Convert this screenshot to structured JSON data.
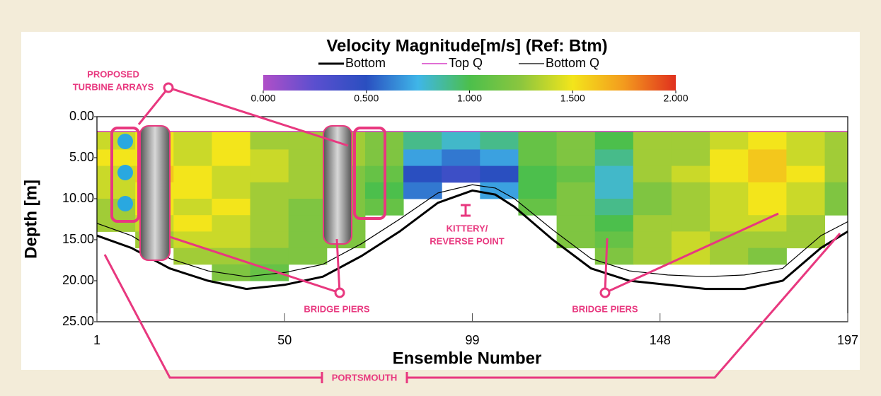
{
  "chart_data": {
    "type": "heatmap",
    "title": "Velocity Magnitude[m/s] (Ref: Btm)",
    "xlabel": "Ensemble Number",
    "ylabel": "Depth [m]",
    "xlim": [
      1,
      197
    ],
    "xticks": [
      1,
      50,
      99,
      148,
      197
    ],
    "ylim": [
      0,
      25
    ],
    "y_inverted": true,
    "yticks": [
      {
        "value": 0,
        "label": "0.00"
      },
      {
        "value": 5,
        "label": "5.00"
      },
      {
        "value": 10,
        "label": "10.00"
      },
      {
        "value": 15,
        "label": "15.00"
      },
      {
        "value": 20,
        "label": "20.00"
      },
      {
        "value": 25,
        "label": "25.00"
      }
    ],
    "clim": [
      0,
      2
    ],
    "cticks": [
      {
        "value": 0,
        "label": "0.000"
      },
      {
        "value": 0.5,
        "label": "0.500"
      },
      {
        "value": 1,
        "label": "1.000"
      },
      {
        "value": 1.5,
        "label": "1.500"
      },
      {
        "value": 2,
        "label": "2.000"
      }
    ],
    "colormap": [
      "#b04fc8",
      "#5a4fcf",
      "#2a4fc0",
      "#3fb6e8",
      "#4cbf4c",
      "#8cc63e",
      "#f3e51b",
      "#f39a1e",
      "#e0301e"
    ],
    "heatmap": {
      "x_bins": [
        1,
        11,
        21,
        31,
        41,
        51,
        61,
        71,
        81,
        91,
        101,
        111,
        121,
        131,
        141,
        151,
        161,
        171,
        181,
        191,
        197
      ],
      "depth_bins": [
        1.8,
        4,
        6,
        8,
        10,
        12,
        14,
        16,
        18,
        20
      ],
      "values": [
        [
          1.4,
          1.5,
          1.4,
          1.5,
          1.3,
          1.3,
          1.3,
          1.2,
          0.9,
          0.8,
          0.9,
          1.1,
          1.2,
          1.0,
          1.3,
          1.3,
          1.4,
          1.5,
          1.4,
          1.3
        ],
        [
          1.5,
          1.5,
          1.4,
          1.5,
          1.4,
          1.3,
          1.3,
          1.2,
          0.7,
          0.6,
          0.7,
          1.1,
          1.2,
          0.9,
          1.3,
          1.3,
          1.5,
          1.6,
          1.4,
          1.3
        ],
        [
          1.4,
          1.6,
          1.5,
          1.4,
          1.4,
          1.3,
          1.2,
          1.1,
          0.5,
          0.4,
          0.5,
          1.0,
          1.1,
          0.8,
          1.3,
          1.4,
          1.5,
          1.6,
          1.5,
          1.3
        ],
        [
          1.4,
          1.5,
          1.5,
          1.4,
          1.3,
          1.3,
          1.2,
          1.0,
          0.6,
          null,
          0.7,
          1.0,
          1.2,
          0.8,
          1.2,
          1.3,
          1.4,
          1.5,
          1.4,
          1.2
        ],
        [
          1.3,
          1.5,
          1.4,
          1.5,
          1.3,
          1.2,
          1.2,
          1.1,
          null,
          null,
          null,
          1.1,
          1.2,
          0.9,
          1.2,
          1.3,
          1.4,
          1.5,
          1.4,
          1.2
        ],
        [
          1.3,
          1.4,
          1.5,
          1.4,
          1.3,
          1.2,
          1.2,
          null,
          null,
          null,
          null,
          null,
          1.2,
          1.0,
          1.3,
          1.3,
          1.4,
          1.4,
          1.3,
          null
        ],
        [
          null,
          1.3,
          1.4,
          1.4,
          1.3,
          1.2,
          1.2,
          null,
          null,
          null,
          null,
          null,
          1.2,
          1.1,
          1.3,
          1.4,
          1.3,
          1.3,
          1.3,
          null
        ],
        [
          null,
          null,
          1.3,
          1.3,
          1.2,
          1.2,
          null,
          null,
          null,
          null,
          null,
          null,
          null,
          1.2,
          1.3,
          1.4,
          1.3,
          1.2,
          null,
          null
        ],
        [
          null,
          null,
          null,
          1.2,
          1.1,
          null,
          null,
          null,
          null,
          null,
          null,
          null,
          null,
          null,
          null,
          null,
          null,
          null,
          null,
          null
        ]
      ]
    },
    "series": [
      {
        "name": "Bottom",
        "color": "#000000",
        "width": 3,
        "x": [
          1,
          10,
          20,
          30,
          40,
          50,
          60,
          70,
          80,
          90,
          99,
          105,
          110,
          120,
          130,
          140,
          150,
          160,
          170,
          180,
          190,
          197
        ],
        "values": [
          14.5,
          16,
          18.5,
          20,
          21,
          20.5,
          19.5,
          17,
          14,
          10.5,
          9,
          9.5,
          11,
          15,
          18.5,
          20,
          20.5,
          21,
          21,
          20,
          16,
          14
        ]
      },
      {
        "name": "Top Q",
        "color": "#d63fc6",
        "width": 1.5,
        "x": [
          1,
          197
        ],
        "values": [
          1.8,
          1.8
        ]
      },
      {
        "name": "Bottom Q",
        "color": "#000000",
        "width": 1.2,
        "x": [
          1,
          10,
          20,
          30,
          40,
          50,
          60,
          70,
          80,
          90,
          99,
          105,
          110,
          120,
          130,
          140,
          150,
          160,
          170,
          180,
          190,
          197
        ],
        "values": [
          13,
          14.5,
          17.3,
          18.8,
          19.5,
          19,
          18,
          15.5,
          12.5,
          9.3,
          8.3,
          8.7,
          10,
          13.8,
          17.3,
          18.8,
          19.3,
          19.5,
          19.3,
          18.5,
          14.5,
          12.8
        ]
      }
    ],
    "annotations": {
      "turbines": [
        "PROPOSED",
        "TURBINE ARRAYS"
      ],
      "piers_left": "BRIDGE PIERS",
      "kittery": [
        "KITTERY/",
        "REVERSE POINT"
      ],
      "piers_right": "BRIDGE PIERS",
      "portsmouth": "PORTSMOUTH"
    }
  }
}
